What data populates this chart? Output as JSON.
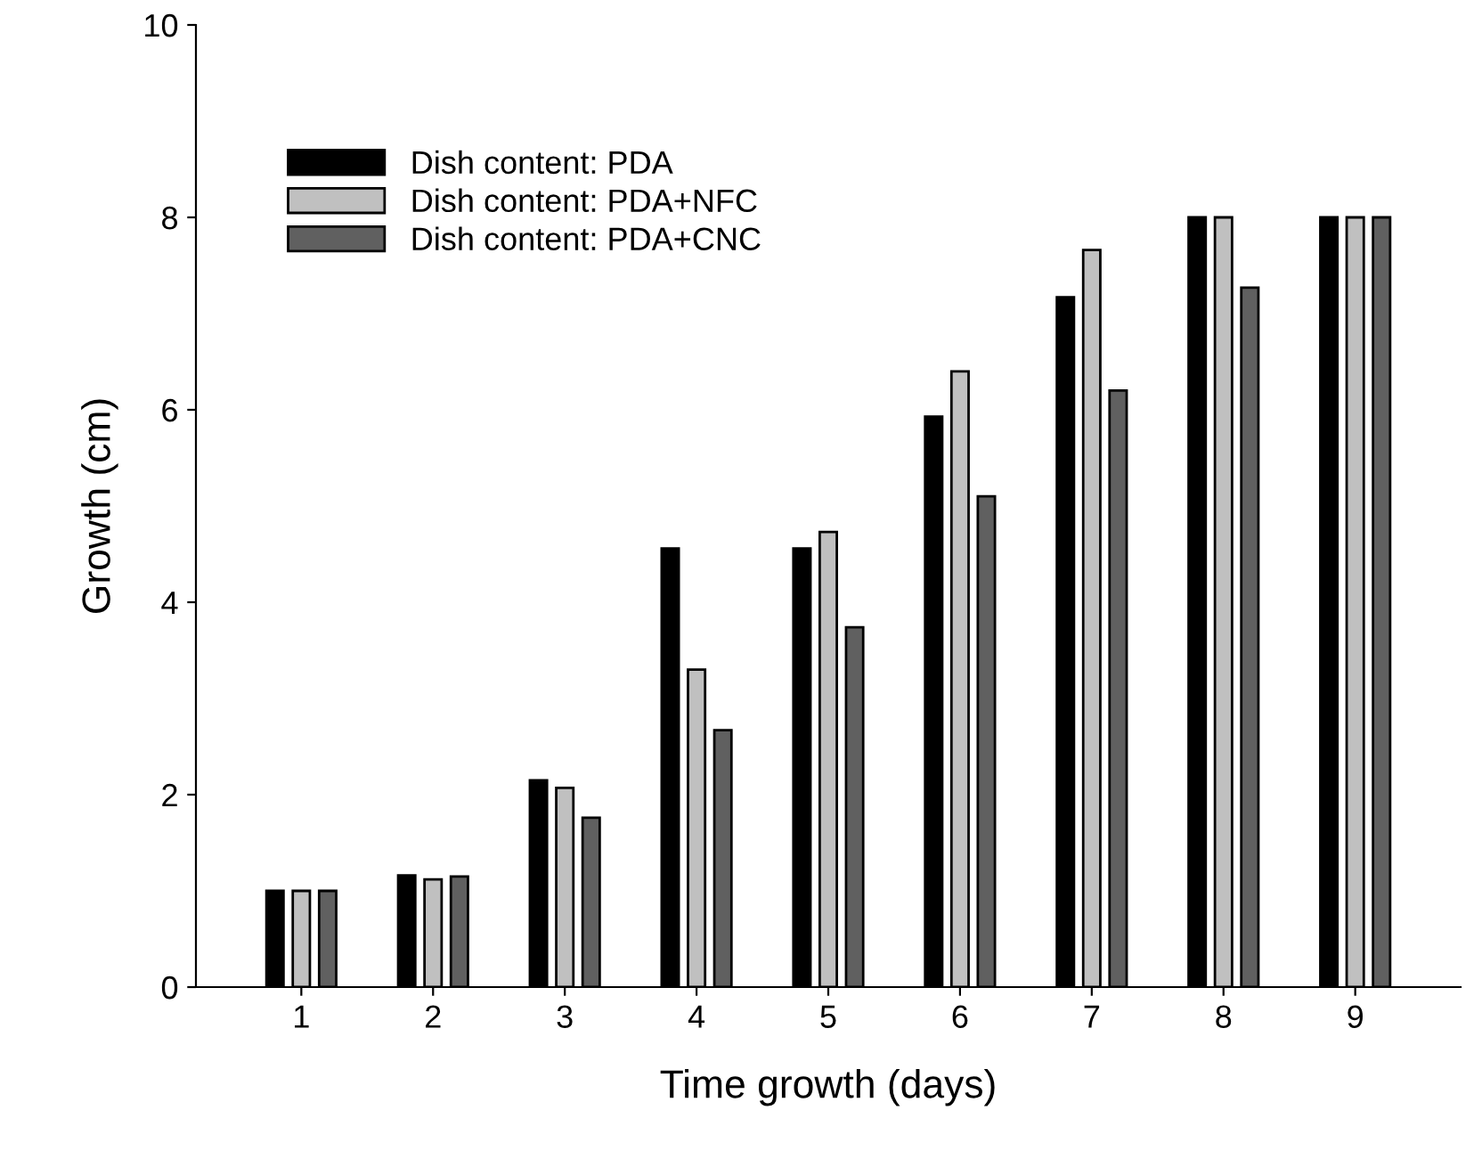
{
  "chart_data": {
    "type": "bar",
    "xlabel": "Time growth (days)",
    "ylabel": "Growth (cm)",
    "categories": [
      "1",
      "2",
      "3",
      "4",
      "5",
      "6",
      "7",
      "8",
      "9"
    ],
    "series": [
      {
        "name": "Dish content: PDA",
        "color": "#000000",
        "values": [
          1.0,
          1.16,
          2.15,
          4.56,
          4.56,
          5.93,
          7.17,
          8.0,
          8.0
        ]
      },
      {
        "name": "Dish content: PDA+NFC",
        "color": "#c0c0c0",
        "values": [
          1.0,
          1.12,
          2.07,
          3.3,
          4.73,
          6.4,
          7.66,
          8.0,
          8.0
        ]
      },
      {
        "name": "Dish content: PDA+CNC",
        "color": "#606060",
        "values": [
          1.0,
          1.15,
          1.76,
          2.67,
          3.74,
          5.1,
          6.2,
          7.27,
          8.0
        ]
      }
    ],
    "ylim": [
      0,
      10
    ],
    "yticks": [
      0,
      2,
      4,
      6,
      8,
      10
    ],
    "grid": false,
    "legend": "top left"
  }
}
